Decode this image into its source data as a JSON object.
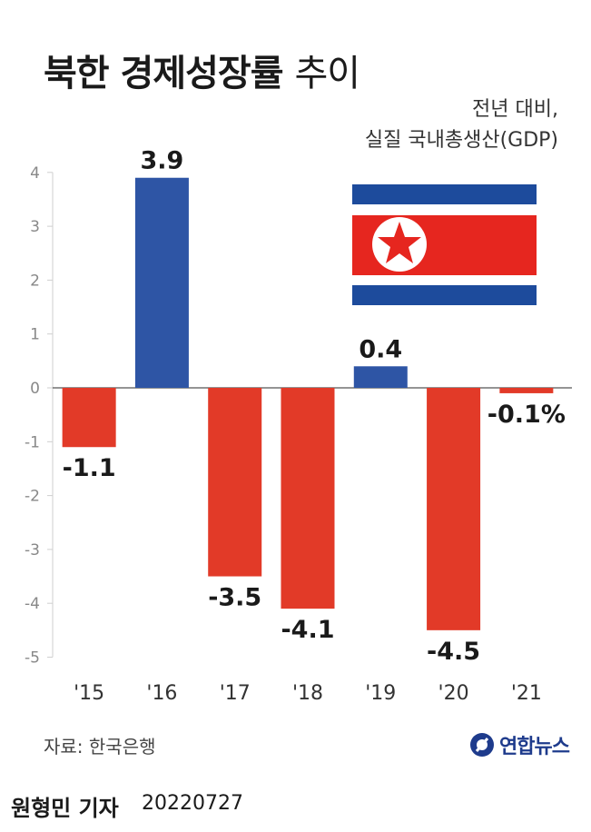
{
  "title_bold": "북한 경제성장률",
  "title_light": "추이",
  "subtitle_line1": "전년 대비,",
  "subtitle_line2": "실질 국내총생산(GDP)",
  "source": "자료: 한국은행",
  "logo": "연합뉴스",
  "reporter": "원형민 기자",
  "date": "20220727",
  "colors": {
    "positive": "#2e55a5",
    "negative": "#e23a28",
    "flag_blue": "#1d4b9c",
    "flag_red": "#e6261f"
  },
  "chart_data": {
    "type": "bar",
    "categories": [
      "'15",
      "'16",
      "'17",
      "'18",
      "'19",
      "'20",
      "'21"
    ],
    "values": [
      -1.1,
      3.9,
      -3.5,
      -4.1,
      0.4,
      -4.5,
      -0.1
    ],
    "value_labels": [
      "-1.1",
      "3.9",
      "-3.5",
      "-4.1",
      "0.4",
      "-4.5",
      "-0.1%"
    ],
    "yticks": [
      4,
      3,
      2,
      1,
      0,
      -1,
      -2,
      -3,
      -4,
      -5
    ],
    "ylim": [
      -5,
      4
    ],
    "grid": false
  }
}
